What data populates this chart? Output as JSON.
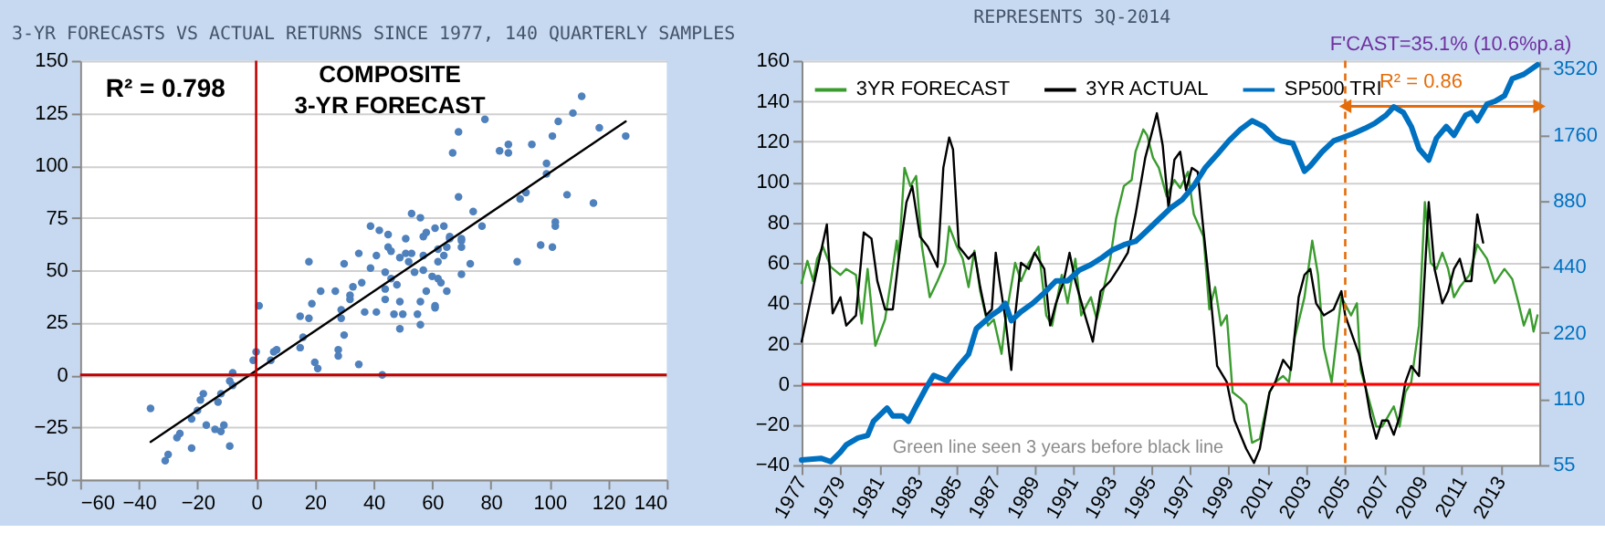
{
  "chart_data": [
    {
      "type": "scatter",
      "title": "3-YR FORECASTS VS ACTUAL RETURNS SINCE 1977, 140 QUARTERLY SAMPLES",
      "xlim": [
        -60,
        140
      ],
      "xticks": [
        -60,
        -40,
        -20,
        0,
        20,
        40,
        60,
        80,
        100,
        120,
        140
      ],
      "ylim": [
        -50,
        150
      ],
      "yticks": [
        -50,
        -25,
        0,
        25,
        50,
        75,
        100,
        125,
        150
      ],
      "grid": "y",
      "series": [
        {
          "type": "scatter",
          "color": "#4f81bd",
          "x": [
            -36,
            -31,
            -30,
            -27,
            -26,
            -22,
            -22,
            -20,
            -19,
            -18,
            -17,
            -14,
            -12,
            -13,
            -12,
            -11,
            -9,
            -9,
            -8,
            -8,
            -1,
            0,
            1,
            5,
            6,
            7,
            15,
            15,
            16,
            18,
            19,
            18,
            20,
            21,
            22,
            27,
            28,
            28,
            29,
            29,
            30,
            30,
            32,
            32,
            33,
            35,
            35,
            36,
            37,
            39,
            39,
            41,
            41,
            42,
            43,
            44,
            44,
            45,
            44,
            45,
            46,
            46,
            47,
            48,
            49,
            49,
            49,
            50,
            51,
            51,
            52,
            53,
            53,
            54,
            55,
            56,
            56,
            56,
            57,
            57,
            57,
            58,
            58,
            60,
            61,
            61,
            61,
            62,
            62,
            62,
            63,
            64,
            64,
            65,
            65,
            66,
            66,
            67,
            69,
            69,
            70,
            70,
            70,
            70,
            73,
            74,
            77,
            78,
            83,
            86,
            86,
            89,
            90,
            92,
            94,
            97,
            99,
            99,
            101,
            101,
            102,
            102,
            103,
            106,
            108,
            111,
            115,
            117,
            126
          ],
          "values": [
            -16,
            -41,
            -38,
            -30,
            -28,
            -35,
            -21,
            -17,
            -12,
            -9,
            -24,
            -26,
            -27,
            -13,
            -9,
            -24,
            -34,
            -3,
            -5,
            1,
            7,
            11,
            33,
            7,
            11,
            12,
            13,
            28,
            18,
            54,
            34,
            27,
            6,
            3,
            40,
            40,
            12,
            9,
            31,
            27,
            19,
            53,
            36,
            38,
            42,
            5,
            58,
            44,
            30,
            71,
            51,
            30,
            57,
            69,
            0,
            41,
            49,
            67,
            36,
            61,
            46,
            59,
            29,
            43,
            22,
            56,
            35,
            29,
            58,
            65,
            54,
            77,
            58,
            49,
            29,
            35,
            24,
            75,
            57,
            50,
            66,
            68,
            40,
            47,
            33,
            32,
            70,
            46,
            54,
            60,
            44,
            71,
            57,
            40,
            61,
            65,
            66,
            106,
            85,
            116,
            65,
            64,
            61,
            48,
            53,
            78,
            71,
            122,
            107,
            106,
            110,
            54,
            84,
            87,
            110,
            62,
            101,
            96,
            114,
            61,
            71,
            73,
            121,
            86,
            125,
            133,
            82,
            118,
            114
          ]
        },
        {
          "type": "line",
          "color": "#000000",
          "x": [
            -36,
            126
          ],
          "values": [
            -32,
            121
          ]
        }
      ],
      "ref_lines": [
        {
          "axis": "x",
          "value": 0,
          "color": "#c00000"
        },
        {
          "axis": "y",
          "value": 0,
          "color": "#c00000"
        }
      ],
      "annotations": [
        "R² = 0.798",
        "COMPOSITE",
        "3-YR FORECAST"
      ]
    },
    {
      "type": "line",
      "title": "REPRESENTS 3Q-2014",
      "xlim": [
        1977,
        2015
      ],
      "xticks": [
        1977,
        1979,
        1981,
        1983,
        1985,
        1987,
        1989,
        1991,
        1993,
        1995,
        1997,
        1999,
        2001,
        2003,
        2005,
        2007,
        2009,
        2011,
        2013
      ],
      "ylim": [
        -40,
        160
      ],
      "yticks": [
        -40,
        -20,
        0,
        20,
        40,
        60,
        80,
        100,
        120,
        140,
        160
      ],
      "y2lim": [
        55,
        3830
      ],
      "y2ticks": [
        55,
        110,
        220,
        440,
        880,
        1760,
        3520
      ],
      "log": "y2",
      "grid": "y",
      "legend": "top left",
      "series": [
        {
          "name": "3YR FORECAST",
          "color": "#3a9c2e",
          "x": [
            1977.0,
            1977.3,
            1977.6,
            1977.8,
            1978.1,
            1978.5,
            1979.0,
            1979.3,
            1979.8,
            1980.1,
            1980.4,
            1980.8,
            1981.3,
            1981.6,
            1981.9,
            1982.0,
            1982.3,
            1982.6,
            1982.9,
            1983.2,
            1983.6,
            1984.0,
            1984.4,
            1984.6,
            1985.0,
            1985.3,
            1985.6,
            1985.9,
            1986.2,
            1986.6,
            1986.9,
            1987.3,
            1987.5,
            1988.0,
            1988.3,
            1988.7,
            1989.2,
            1989.6,
            1989.9,
            1990.4,
            1990.7,
            1991.1,
            1991.4,
            1991.9,
            1992.2,
            1992.4,
            1992.9,
            1993.2,
            1993.6,
            1994.0,
            1994.2,
            1994.6,
            1994.8,
            1995.1,
            1995.4,
            1995.8,
            1996.2,
            1996.5,
            1996.9,
            1997.2,
            1997.7,
            1998.0,
            1998.3,
            1998.6,
            1998.9,
            1999.2,
            1999.6,
            1999.9,
            2000.2,
            2000.6,
            2001.1,
            2001.4,
            2001.8,
            2002.1,
            2002.4,
            2002.9,
            2003.3,
            2003.6,
            2003.9,
            2004.3,
            2004.8,
            2005.3,
            2005.6,
            2005.8,
            2006.2,
            2006.6,
            2006.9,
            2007.2,
            2007.5,
            2007.8,
            2008.1,
            2008.4,
            2008.8,
            2009.1,
            2009.4,
            2009.7,
            2010.0,
            2010.3,
            2010.6,
            2010.9,
            2011.4,
            2011.8,
            2012.3,
            2012.7,
            2013.2,
            2013.6,
            2013.9,
            2014.2,
            2014.5,
            2014.7,
            2014.9
          ],
          "values": [
            50,
            61,
            51,
            62,
            68,
            58,
            54,
            57,
            54,
            30,
            57,
            19,
            32,
            51,
            71,
            62,
            107,
            98,
            103,
            68,
            43,
            51,
            60,
            78,
            68,
            62,
            48,
            66,
            46,
            29,
            32,
            15,
            32,
            60,
            51,
            60,
            68,
            34,
            29,
            54,
            40,
            62,
            34,
            43,
            32,
            40,
            62,
            82,
            98,
            101,
            115,
            126,
            123,
            112,
            107,
            93,
            101,
            97,
            105,
            84,
            73,
            37,
            48,
            29,
            34,
            -4,
            -7,
            -10,
            -29,
            -27,
            -4,
            1,
            4,
            1,
            23,
            43,
            71,
            54,
            18,
            1,
            43,
            34,
            40,
            7,
            -7,
            -21,
            -21,
            -16,
            -11,
            -21,
            -4,
            1,
            29,
            90,
            60,
            57,
            65,
            57,
            43,
            48,
            54,
            69,
            62,
            50,
            57,
            52,
            41,
            29,
            37,
            26,
            34
          ]
        },
        {
          "name": "3YR ACTUAL",
          "color": "#000000",
          "x": [
            1977.0,
            1978.3,
            1978.6,
            1979.0,
            1979.3,
            1979.8,
            1980.2,
            1980.6,
            1980.9,
            1981.3,
            1981.7,
            1982.0,
            1982.4,
            1982.7,
            1983.1,
            1983.5,
            1984.0,
            1984.3,
            1984.6,
            1984.8,
            1985.1,
            1985.6,
            1985.9,
            1986.2,
            1986.5,
            1986.8,
            1987.0,
            1987.2,
            1987.5,
            1987.8,
            1988.0,
            1988.3,
            1988.7,
            1989.0,
            1989.5,
            1989.8,
            1990.1,
            1990.5,
            1990.8,
            1991.1,
            1991.6,
            1992.0,
            1992.4,
            1992.9,
            1993.3,
            1993.8,
            1994.2,
            1994.7,
            1995.3,
            1995.6,
            1995.9,
            1996.2,
            1996.5,
            1996.8,
            1997.1,
            1997.4,
            1997.7,
            1998.1,
            1998.4,
            1998.9,
            1999.3,
            1999.9,
            2000.3,
            2000.6,
            2001.1,
            2001.4,
            2001.8,
            2002.2,
            2002.6,
            2002.9,
            2003.2,
            2003.5,
            2003.9,
            2004.4,
            2004.8,
            2005.0,
            2005.4,
            2005.7,
            2006.0,
            2006.3,
            2006.6,
            2006.9,
            2007.2,
            2007.5,
            2007.8,
            2008.1,
            2008.4,
            2008.8,
            2009.3,
            2009.6,
            2010.0,
            2010.3,
            2010.6,
            2010.9,
            2011.2,
            2011.5,
            2011.8,
            2012.1
          ],
          "values": [
            21,
            79,
            35,
            43,
            29,
            34,
            75,
            72,
            51,
            37,
            37,
            62,
            90,
            98,
            73,
            68,
            58,
            107,
            122,
            116,
            68,
            62,
            65,
            48,
            34,
            37,
            65,
            51,
            32,
            7,
            34,
            60,
            57,
            65,
            57,
            29,
            40,
            51,
            65,
            51,
            34,
            21,
            46,
            51,
            57,
            65,
            84,
            112,
            134,
            118,
            87,
            111,
            115,
            96,
            107,
            105,
            76,
            40,
            9,
            1,
            -18,
            -32,
            -39,
            -32,
            -4,
            1,
            12,
            7,
            43,
            54,
            57,
            40,
            34,
            37,
            46,
            34,
            23,
            15,
            1,
            -16,
            -27,
            -18,
            -18,
            -25,
            -16,
            1,
            9,
            4,
            90,
            57,
            40,
            46,
            57,
            62,
            51,
            51,
            84,
            70
          ]
        },
        {
          "name": "SP500 TRI",
          "color": "#0070c0",
          "axis": "y2",
          "x": [
            1977.0,
            1978.0,
            1978.5,
            1979.0,
            1979.3,
            1979.9,
            1980.4,
            1980.7,
            1981.4,
            1981.7,
            1982.2,
            1982.5,
            1982.8,
            1983.4,
            1983.8,
            1984.5,
            1985.1,
            1985.6,
            1986.0,
            1986.8,
            1987.2,
            1987.5,
            1987.8,
            1988.3,
            1988.9,
            1989.5,
            1990.1,
            1990.7,
            1991.3,
            1991.9,
            1992.4,
            1993.0,
            1993.6,
            1994.2,
            1994.8,
            1995.4,
            1996.0,
            1996.6,
            1997.2,
            1997.8,
            1998.4,
            1999.0,
            1999.6,
            2000.2,
            2000.8,
            2001.4,
            2001.7,
            2002.3,
            2002.9,
            2003.2,
            2003.8,
            2004.4,
            2004.8,
            2005.4,
            2006.0,
            2006.5,
            2007.1,
            2007.5,
            2008.0,
            2008.4,
            2008.8,
            2009.3,
            2009.7,
            2010.2,
            2010.6,
            2011.2,
            2011.5,
            2011.8,
            2012.3,
            2012.7,
            2013.2,
            2013.6,
            2014.2,
            2014.9
          ],
          "values": [
            58,
            59,
            57,
            63,
            68,
            73,
            75,
            87,
            100,
            92,
            92,
            87,
            98,
            123,
            141,
            133,
            156,
            176,
            230,
            265,
            280,
            300,
            250,
            275,
            300,
            335,
            380,
            380,
            425,
            450,
            480,
            525,
            555,
            575,
            645,
            725,
            815,
            890,
            1030,
            1250,
            1430,
            1650,
            1860,
            2040,
            1920,
            1700,
            1650,
            1610,
            1200,
            1270,
            1470,
            1650,
            1700,
            1780,
            1880,
            1980,
            2160,
            2360,
            2220,
            1920,
            1520,
            1350,
            1700,
            1920,
            1750,
            2160,
            2220,
            2040,
            2430,
            2500,
            2650,
            3170,
            3320,
            3670
          ]
        }
      ],
      "ref_lines": [
        {
          "axis": "y",
          "value": 0,
          "color": "#ff0000"
        },
        {
          "axis": "x",
          "value": 2005,
          "color": "#e46c0a",
          "line_style": "dashed"
        }
      ],
      "annotations": [
        "F'CAST=35.1%  (10.6%p.a)",
        "Green line seen 3 years before black line",
        "R² = 0.86"
      ]
    }
  ]
}
